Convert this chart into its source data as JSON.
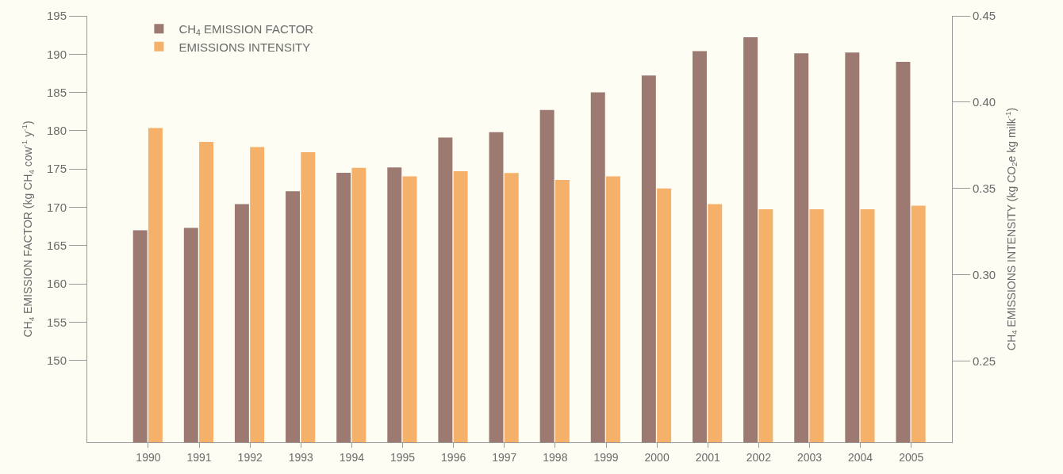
{
  "chart_data": {
    "type": "bar",
    "categories": [
      "1990",
      "1991",
      "1992",
      "1993",
      "1994",
      "1995",
      "1996",
      "1997",
      "1998",
      "1999",
      "2000",
      "2001",
      "2002",
      "2003",
      "2004",
      "2005"
    ],
    "series": [
      {
        "name": "CH$_{4}$ EMISSION FACTOR",
        "color": "#9c7a72",
        "values": [
          167.0,
          167.3,
          170.4,
          172.1,
          174.5,
          175.2,
          179.1,
          179.8,
          182.7,
          185.0,
          187.2,
          190.4,
          192.2,
          190.1,
          190.2,
          189.0
        ]
      },
      {
        "name": "EMISSIONS INTENSITY",
        "color": "#f5b06a",
        "axis": "y2",
        "values": [
          0.385,
          0.377,
          0.374,
          0.371,
          0.362,
          0.357,
          0.36,
          0.359,
          0.355,
          0.357,
          0.35,
          0.341,
          0.338,
          0.338,
          0.338,
          0.34
        ]
      }
    ],
    "ylabel": "CH$_{4}$ EMISSION FACTOR (kg CH$_{4}$ cow$^{-1}$ y$^{-1}$)",
    "y2label": "CH$_{4}$ EMISSIONS INTENSITY (kg CO$_{2}$e kg milk$^{-1}$)",
    "ylim": [
      139.3,
      195
    ],
    "yticks": [
      150,
      155,
      160,
      165,
      170,
      175,
      180,
      185,
      190,
      195
    ],
    "y2lim": [
      0.203,
      0.45
    ],
    "y2ticks": [
      {
        "value": 0.25,
        "label": "0.25"
      },
      {
        "value": 0.3,
        "label": "0.30"
      },
      {
        "value": 0.35,
        "label": "0.35"
      },
      {
        "value": 0.4,
        "label": "0.40"
      },
      {
        "value": 0.45,
        "label": "0.45"
      }
    ],
    "legend": "top left",
    "grid": false
  }
}
